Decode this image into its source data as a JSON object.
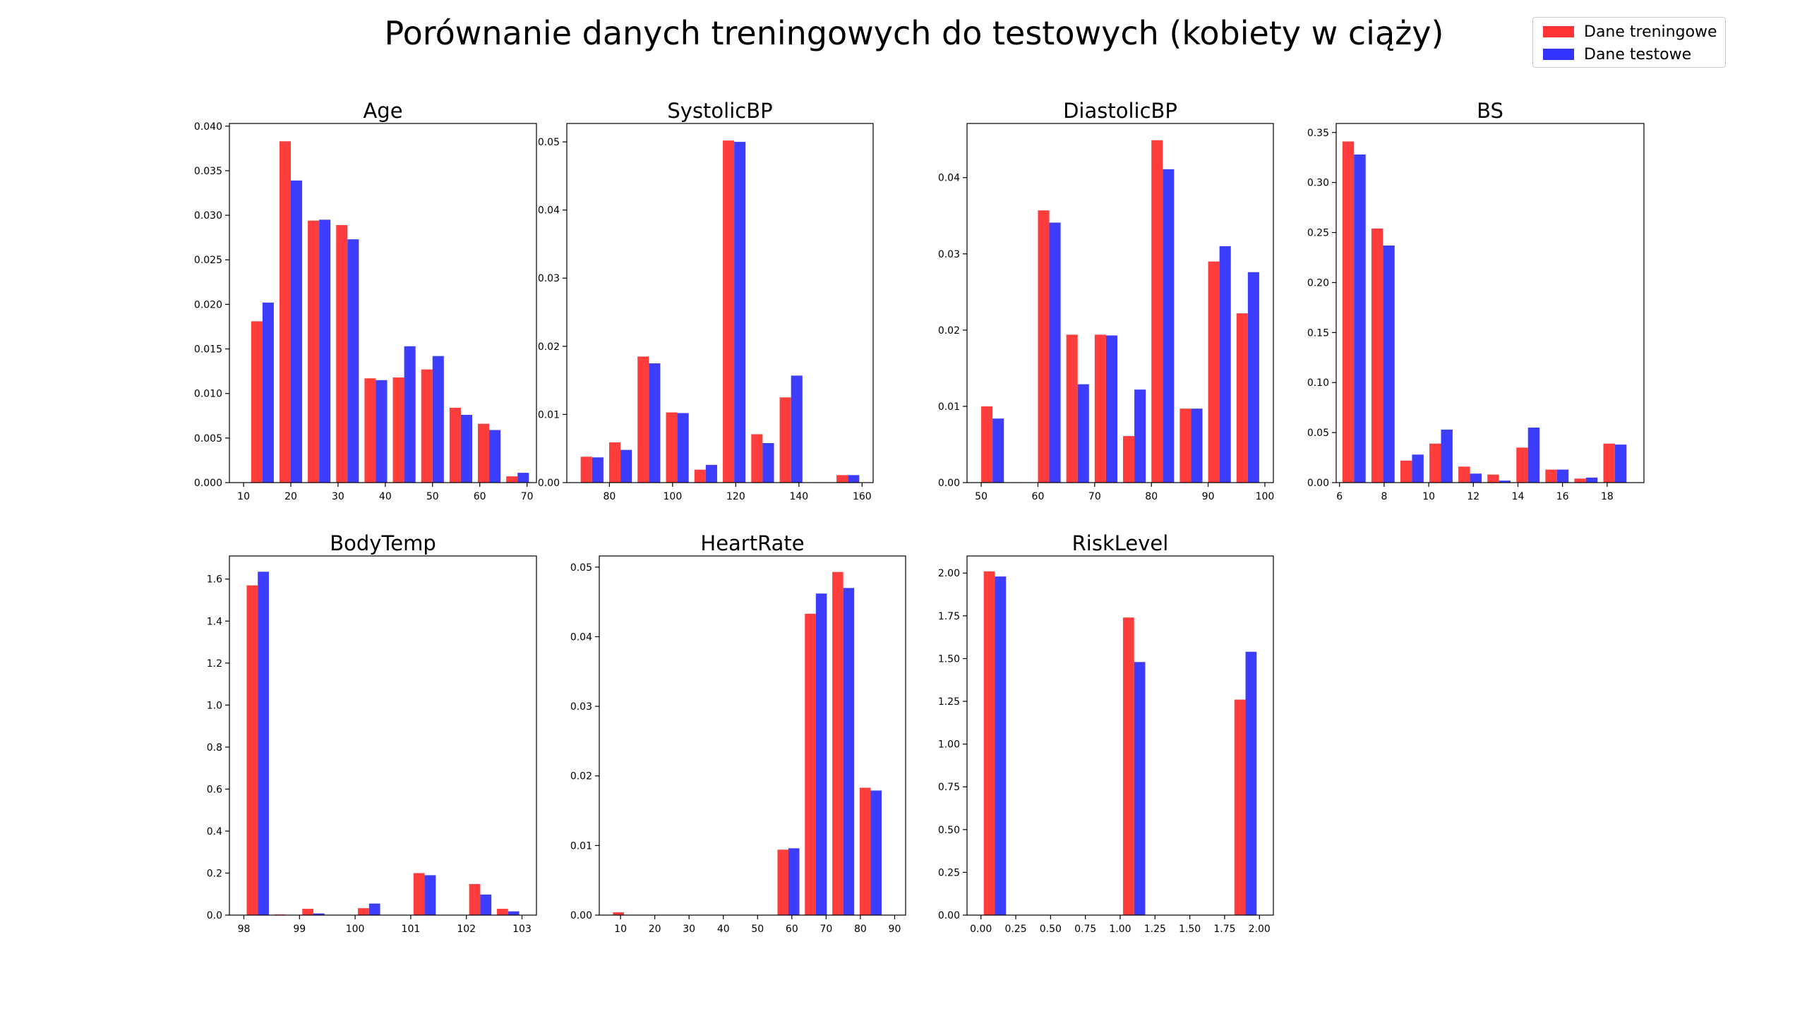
{
  "title": "Porównanie danych treningowych do testowych (kobiety w ciąży)",
  "legend": {
    "train": {
      "label": "Dane treningowe",
      "color": "#ff3333"
    },
    "test": {
      "label": "Dane testowe",
      "color": "#3333ff"
    }
  },
  "chart_data": [
    {
      "type": "bar",
      "title": "Age",
      "xlabel": "",
      "ylabel": "",
      "xlim": [
        7,
        72
      ],
      "ylim": [
        0,
        0.0403
      ],
      "xticks": [
        10,
        20,
        30,
        40,
        50,
        60,
        70
      ],
      "yticks": [
        0.0,
        0.005,
        0.01,
        0.015,
        0.02,
        0.025,
        0.03,
        0.035,
        0.04
      ],
      "ytick_decimals": 3,
      "x": [
        14,
        20,
        26,
        32,
        38,
        44,
        50,
        56,
        62,
        68
      ],
      "bar_width": 2.4,
      "series": [
        {
          "name": "Dane treningowe",
          "values": [
            0.0181,
            0.0383,
            0.0294,
            0.0289,
            0.0117,
            0.0118,
            0.0127,
            0.0084,
            0.0066,
            0.0007
          ]
        },
        {
          "name": "Dane testowe",
          "values": [
            0.0202,
            0.0339,
            0.0295,
            0.0273,
            0.0115,
            0.0153,
            0.0142,
            0.0076,
            0.0059,
            0.0011
          ]
        }
      ]
    },
    {
      "type": "bar",
      "title": "SystolicBP",
      "xlabel": "",
      "ylabel": "",
      "xlim": [
        66.5,
        163.5
      ],
      "ylim": [
        0,
        0.0527
      ],
      "xticks": [
        80,
        100,
        120,
        140,
        160
      ],
      "yticks": [
        0.0,
        0.01,
        0.02,
        0.03,
        0.04,
        0.05
      ],
      "ytick_decimals": 2,
      "x": [
        74.5,
        83.5,
        92.5,
        101.5,
        110.5,
        119.5,
        128.5,
        137.5,
        146.5,
        155.5
      ],
      "bar_width": 3.6,
      "series": [
        {
          "name": "Dane treningowe",
          "values": [
            0.0038,
            0.0059,
            0.0185,
            0.0103,
            0.0019,
            0.0502,
            0.0071,
            0.0125,
            0.0,
            0.0011
          ]
        },
        {
          "name": "Dane testowe",
          "values": [
            0.0037,
            0.0048,
            0.0175,
            0.0102,
            0.0026,
            0.05,
            0.0058,
            0.0157,
            0.0,
            0.0011
          ]
        }
      ]
    },
    {
      "type": "bar",
      "title": "DiastolicBP",
      "xlabel": "",
      "ylabel": "",
      "xlim": [
        47.5,
        101.5
      ],
      "ylim": [
        0,
        0.0471
      ],
      "xticks": [
        50,
        60,
        70,
        80,
        90,
        100
      ],
      "yticks": [
        0.0,
        0.01,
        0.02,
        0.03,
        0.04
      ],
      "ytick_decimals": 2,
      "x": [
        52,
        57,
        62,
        67,
        72,
        77,
        82,
        87,
        92,
        97
      ],
      "bar_width": 2.0,
      "series": [
        {
          "name": "Dane treningowe",
          "values": [
            0.01,
            0.0,
            0.0357,
            0.0194,
            0.0194,
            0.0061,
            0.0449,
            0.0097,
            0.029,
            0.0222
          ]
        },
        {
          "name": "Dane testowe",
          "values": [
            0.0084,
            0.0,
            0.0341,
            0.0129,
            0.0193,
            0.0122,
            0.0411,
            0.0097,
            0.031,
            0.0276
          ]
        }
      ]
    },
    {
      "type": "bar",
      "title": "BS",
      "xlabel": "",
      "ylabel": "",
      "xlim": [
        5.85,
        19.65
      ],
      "ylim": [
        0,
        0.359
      ],
      "xticks": [
        6,
        8,
        10,
        12,
        14,
        16,
        18
      ],
      "yticks": [
        0.0,
        0.05,
        0.1,
        0.15,
        0.2,
        0.25,
        0.3,
        0.35
      ],
      "ytick_decimals": 2,
      "x": [
        6.65,
        7.95,
        9.25,
        10.55,
        11.85,
        13.15,
        14.45,
        15.75,
        17.05,
        18.35
      ],
      "bar_width": 0.52,
      "series": [
        {
          "name": "Dane treningowe",
          "values": [
            0.341,
            0.254,
            0.022,
            0.039,
            0.016,
            0.008,
            0.035,
            0.013,
            0.004,
            0.039
          ]
        },
        {
          "name": "Dane testowe",
          "values": [
            0.328,
            0.237,
            0.028,
            0.053,
            0.009,
            0.002,
            0.055,
            0.013,
            0.005,
            0.038
          ]
        }
      ]
    },
    {
      "type": "bar",
      "title": "BodyTemp",
      "xlabel": "",
      "ylabel": "",
      "xlim": [
        97.74,
        103.26
      ],
      "ylim": [
        0,
        1.71
      ],
      "xticks": [
        98,
        99,
        100,
        101,
        102,
        103
      ],
      "yticks": [
        0.0,
        0.2,
        0.4,
        0.6,
        0.8,
        1.0,
        1.2,
        1.4,
        1.6
      ],
      "ytick_decimals": 1,
      "x": [
        98.25,
        98.75,
        99.25,
        99.75,
        100.25,
        100.75,
        101.25,
        101.75,
        102.25,
        102.75
      ],
      "bar_width": 0.2,
      "series": [
        {
          "name": "Dane treningowe",
          "values": [
            1.57,
            0.003,
            0.03,
            0.0,
            0.033,
            0.0,
            0.2,
            0.0,
            0.148,
            0.03
          ]
        },
        {
          "name": "Dane testowe",
          "values": [
            1.635,
            0.0,
            0.008,
            0.0,
            0.055,
            0.0,
            0.19,
            0.0,
            0.098,
            0.018
          ]
        }
      ]
    },
    {
      "type": "bar",
      "title": "HeartRate",
      "xlabel": "",
      "ylabel": "",
      "xlim": [
        3.8,
        93.2
      ],
      "ylim": [
        0,
        0.0516
      ],
      "xticks": [
        10,
        20,
        30,
        40,
        50,
        60,
        70,
        80,
        90
      ],
      "yticks": [
        0.0,
        0.01,
        0.02,
        0.03,
        0.04,
        0.05
      ],
      "ytick_decimals": 2,
      "x": [
        11,
        19,
        27,
        35,
        43,
        51,
        59,
        67,
        75,
        83
      ],
      "bar_width": 3.2,
      "series": [
        {
          "name": "Dane treningowe",
          "values": [
            0.0004,
            0.0,
            0.0,
            0.0,
            0.0,
            0.0,
            0.0094,
            0.0433,
            0.0493,
            0.0183
          ]
        },
        {
          "name": "Dane testowe",
          "values": [
            0.0,
            0.0,
            0.0,
            0.0,
            0.0,
            0.0,
            0.0096,
            0.0462,
            0.047,
            0.0179
          ]
        }
      ]
    },
    {
      "type": "bar",
      "title": "RiskLevel",
      "xlabel": "",
      "ylabel": "",
      "xlim": [
        -0.1,
        2.1
      ],
      "ylim": [
        0,
        2.1
      ],
      "xticks": [
        0.0,
        0.25,
        0.5,
        0.75,
        1.0,
        1.25,
        1.5,
        1.75,
        2.0
      ],
      "xtick_decimals": 2,
      "yticks": [
        0.0,
        0.25,
        0.5,
        0.75,
        1.0,
        1.25,
        1.5,
        1.75,
        2.0
      ],
      "ytick_decimals": 2,
      "x": [
        0.1,
        0.3,
        0.5,
        0.7,
        0.9,
        1.1,
        1.3,
        1.5,
        1.7,
        1.9
      ],
      "bar_width": 0.08,
      "series": [
        {
          "name": "Dane treningowe",
          "values": [
            2.01,
            0.0,
            0.0,
            0.0,
            0.0,
            1.74,
            0.0,
            0.0,
            0.0,
            1.26
          ]
        },
        {
          "name": "Dane testowe",
          "values": [
            1.98,
            0.0,
            0.0,
            0.0,
            0.0,
            1.48,
            0.0,
            0.0,
            0.0,
            1.54
          ]
        }
      ]
    }
  ]
}
